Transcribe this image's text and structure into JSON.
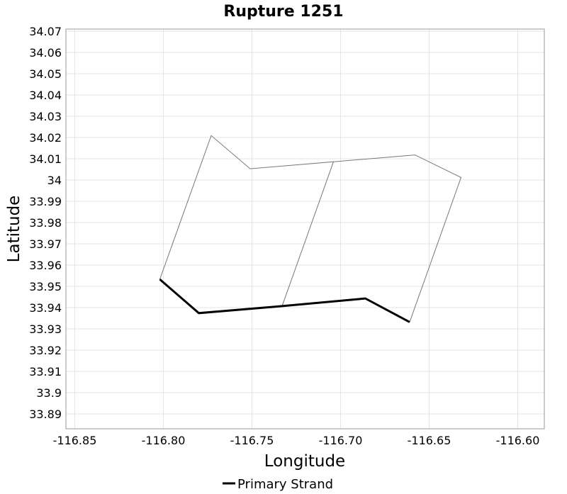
{
  "chart_data": {
    "type": "line",
    "title": "Rupture 1251",
    "xlabel": "Longitude",
    "ylabel": "Latitude",
    "xlim": [
      -116.855,
      -116.585
    ],
    "ylim": [
      33.883,
      34.071
    ],
    "x_ticks": [
      -116.85,
      -116.8,
      -116.75,
      -116.7,
      -116.65,
      -116.6
    ],
    "x_tick_labels": [
      "-116.85",
      "-116.80",
      "-116.75",
      "-116.70",
      "-116.65",
      "-116.60"
    ],
    "y_ticks": [
      33.89,
      33.9,
      33.91,
      33.92,
      33.93,
      33.94,
      33.95,
      33.96,
      33.97,
      33.98,
      33.99,
      34,
      34.01,
      34.02,
      34.03,
      34.04,
      34.05,
      34.06,
      34.07
    ],
    "y_tick_labels": [
      "33.89",
      "33.9",
      "33.91",
      "33.92",
      "33.93",
      "33.94",
      "33.95",
      "33.96",
      "33.97",
      "33.98",
      "33.99",
      "34",
      "34.01",
      "34.02",
      "34.03",
      "34.04",
      "34.05",
      "34.06",
      "34.07"
    ],
    "grid": true,
    "legend_position": "bottom-center",
    "legend": [
      {
        "name": "Primary Strand",
        "color": "#000000"
      }
    ],
    "series": [
      {
        "name": "Primary Strand",
        "color": "#000000",
        "width": "thick",
        "points": [
          [
            -116.802,
            33.9533
          ],
          [
            -116.78,
            33.9374
          ],
          [
            -116.733,
            33.9407
          ],
          [
            -116.686,
            33.9443
          ],
          [
            -116.661,
            33.9332
          ]
        ]
      },
      {
        "color": "#777777",
        "width": "thin",
        "points": [
          [
            -116.802,
            33.9533
          ],
          [
            -116.773,
            34.0209
          ],
          [
            -116.751,
            34.0053
          ],
          [
            -116.704,
            34.0086
          ],
          [
            -116.733,
            33.9407
          ]
        ]
      },
      {
        "color": "#777777",
        "width": "thin",
        "points": [
          [
            -116.704,
            34.0086
          ],
          [
            -116.658,
            34.0118
          ],
          [
            -116.632,
            34.0012
          ],
          [
            -116.661,
            33.9332
          ]
        ]
      }
    ]
  }
}
